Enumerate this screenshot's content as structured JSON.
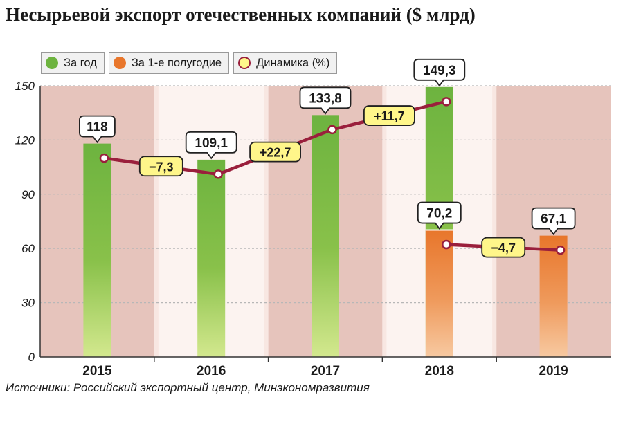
{
  "title": "Несырьевой экспорт отечественных компаний ($ млрд)",
  "source": "Источники: Российский экспортный центр, Минэкономразвития",
  "legend": {
    "annual": "За год",
    "half": "За 1-е полугодие",
    "dynamics": "Динамика (%)"
  },
  "colors": {
    "annual_top": "#6db33f",
    "annual_bottom": "#d3e88e",
    "half_top": "#e8762b",
    "half_bottom": "#f7c9a1",
    "line": "#9a1f3c",
    "badge_yellow": "#fff68a",
    "band_dark": "#e6c4bc",
    "band_light": "#f8e7e2"
  },
  "chart_data": {
    "type": "bar",
    "categories": [
      "2015",
      "2016",
      "2017",
      "2018",
      "2019"
    ],
    "ylim": [
      0,
      150
    ],
    "yticks": [
      "0",
      "30",
      "60",
      "90",
      "120",
      "150"
    ],
    "series": [
      {
        "name": "За год",
        "values": [
          118,
          109.1,
          133.8,
          149.3,
          null
        ],
        "labels": [
          "118",
          "109,1",
          "133,8",
          "149,3",
          ""
        ]
      },
      {
        "name": "За 1-е полугодие",
        "values": [
          null,
          null,
          null,
          70.2,
          67.1
        ],
        "labels": [
          "",
          "",
          "",
          "70,2",
          "67,1"
        ]
      }
    ],
    "dynamics": [
      {
        "name": "Динамика (%)",
        "period": "annual",
        "changes": [
          "−7,3",
          "+22,7",
          "+11,7"
        ],
        "values": [
          -7.3,
          22.7,
          11.7
        ]
      },
      {
        "name": "Динамика (%)",
        "period": "half",
        "changes": [
          "−4,7"
        ],
        "values": [
          -4.7
        ]
      }
    ]
  }
}
